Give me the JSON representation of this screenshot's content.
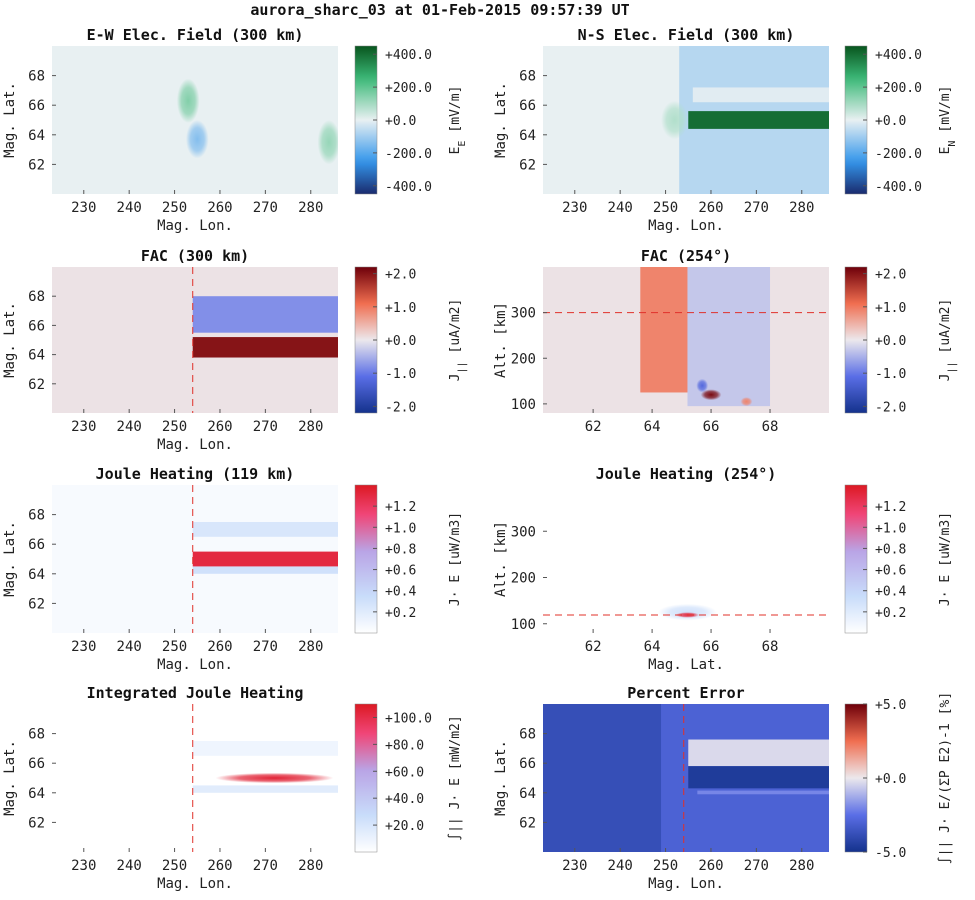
{
  "figure": {
    "title": "aurora_sharc_03 at 01-Feb-2015 09:57:39 UT"
  },
  "colors": {
    "red_dash": "#e0302a",
    "axis": "#555555"
  },
  "chart_data": [
    {
      "id": "ew",
      "type": "heatmap",
      "title": "E-W Elec. Field (300 km)",
      "xlabel": "Mag. Lon.",
      "ylabel": "Mag. Lat.",
      "xlim": [
        223,
        286
      ],
      "ylim": [
        60,
        70
      ],
      "xticks": [
        230,
        240,
        250,
        260,
        270,
        280
      ],
      "yticks": [
        62,
        64,
        66,
        68
      ],
      "colormap": "green-white-blue",
      "cbar": {
        "label": "E",
        "sub": "E",
        "unit": "[mV/m]",
        "min": -450,
        "max": 450,
        "ticks": [
          400,
          200,
          0,
          -200,
          -400
        ],
        "tick_labels": [
          "+400.0",
          "+200.0",
          "+0.0",
          "-200.0",
          "-400.0"
        ]
      },
      "background": 0,
      "features": [
        {
          "kind": "blob",
          "cx": 253,
          "cy": 66.3,
          "rx": 2.5,
          "ry": 1.5,
          "value": 150
        },
        {
          "kind": "blob",
          "cx": 255,
          "cy": 63.7,
          "rx": 2.5,
          "ry": 1.3,
          "value": -140
        },
        {
          "kind": "blob",
          "cx": 284,
          "cy": 63.5,
          "rx": 2.5,
          "ry": 1.5,
          "value": 120
        }
      ]
    },
    {
      "id": "ns",
      "type": "heatmap",
      "title": "N-S Elec. Field (300 km)",
      "xlabel": "Mag. Lon.",
      "ylabel": "Mag. Lat.",
      "xlim": [
        223,
        286
      ],
      "ylim": [
        60,
        70
      ],
      "xticks": [
        230,
        240,
        250,
        260,
        270,
        280
      ],
      "yticks": [
        62,
        64,
        66,
        68
      ],
      "colormap": "green-white-blue",
      "cbar": {
        "label": "E",
        "sub": "N",
        "unit": "[mV/m]",
        "min": -450,
        "max": 450,
        "ticks": [
          400,
          200,
          0,
          -200,
          -400
        ],
        "tick_labels": [
          "+400.0",
          "+200.0",
          "+0.0",
          "-200.0",
          "-400.0"
        ]
      },
      "background": 0,
      "features": [
        {
          "kind": "rect",
          "x0": 253,
          "x1": 286,
          "y0": 60,
          "y1": 70,
          "value": -70
        },
        {
          "kind": "rect",
          "x0": 256,
          "x1": 286,
          "y0": 66.2,
          "y1": 67.2,
          "value": -10
        },
        {
          "kind": "rect",
          "x0": 255,
          "x1": 286,
          "y0": 64.4,
          "y1": 65.6,
          "value": 400
        },
        {
          "kind": "blob",
          "cx": 252,
          "cy": 65,
          "rx": 3,
          "ry": 1.3,
          "value": 80
        }
      ]
    },
    {
      "id": "fac_lon",
      "type": "heatmap",
      "title": "FAC (300 km)",
      "xlabel": "Mag. Lon.",
      "ylabel": "Mag. Lat.",
      "xlim": [
        223,
        286
      ],
      "ylim": [
        60,
        70
      ],
      "xticks": [
        230,
        240,
        250,
        260,
        270,
        280
      ],
      "yticks": [
        62,
        64,
        66,
        68
      ],
      "colormap": "blue-white-red",
      "cbar": {
        "label": "J",
        "sub": "||",
        "unit": "[uA/m2]",
        "min": -2.2,
        "max": 2.2,
        "ticks": [
          2,
          1,
          0,
          -1,
          -2
        ],
        "tick_labels": [
          "+2.0",
          "+1.0",
          "+0.0",
          "-1.0",
          "-2.0"
        ]
      },
      "background": 0.05,
      "vline": 254,
      "features": [
        {
          "kind": "rect",
          "x0": 254,
          "x1": 286,
          "y0": 65.5,
          "y1": 68,
          "value": -0.8
        },
        {
          "kind": "rect",
          "x0": 254,
          "x1": 286,
          "y0": 63.8,
          "y1": 65.2,
          "value": 2.0
        }
      ]
    },
    {
      "id": "fac_alt",
      "type": "heatmap",
      "title": "FAC (254°)",
      "xlabel": "",
      "ylabel": "Alt. [km]",
      "xlim": [
        60.3,
        70
      ],
      "ylim": [
        80,
        400
      ],
      "xticks": [
        62,
        64,
        66,
        68
      ],
      "yticks": [
        100,
        200,
        300
      ],
      "colormap": "blue-white-red",
      "cbar": {
        "label": "J",
        "sub": "||",
        "unit": "[uA/m2]",
        "min": -2.2,
        "max": 2.2,
        "ticks": [
          2,
          1,
          0,
          -1,
          -2
        ],
        "tick_labels": [
          "+2.0",
          "+1.0",
          "+0.0",
          "-1.0",
          "-2.0"
        ]
      },
      "background": 0.05,
      "hline": 300,
      "features": [
        {
          "kind": "rect",
          "x0": 63.6,
          "x1": 65.2,
          "y0": 125,
          "y1": 400,
          "value": 0.9
        },
        {
          "kind": "rect",
          "x0": 65.2,
          "x1": 68,
          "y0": 95,
          "y1": 400,
          "value": -0.3
        },
        {
          "kind": "blob",
          "cx": 66.0,
          "cy": 120,
          "rx": 0.35,
          "ry": 12,
          "value": 2.1
        },
        {
          "kind": "blob",
          "cx": 65.7,
          "cy": 140,
          "rx": 0.2,
          "ry": 15,
          "value": -1.2
        },
        {
          "kind": "blob",
          "cx": 67.2,
          "cy": 105,
          "rx": 0.2,
          "ry": 10,
          "value": 0.9
        }
      ]
    },
    {
      "id": "jh_lon",
      "type": "heatmap",
      "title": "Joule Heating (119 km)",
      "xlabel": "Mag. Lon.",
      "ylabel": "Mag. Lat.",
      "xlim": [
        223,
        286
      ],
      "ylim": [
        60,
        70
      ],
      "xticks": [
        230,
        240,
        250,
        260,
        270,
        280
      ],
      "yticks": [
        62,
        64,
        66,
        68
      ],
      "colormap": "white-blue-red",
      "cbar": {
        "label": "J· E",
        "sub": "",
        "unit": "[uW/m3]",
        "min": 0,
        "max": 1.4,
        "ticks": [
          1.2,
          1.0,
          0.8,
          0.6,
          0.4,
          0.2
        ],
        "tick_labels": [
          "+1.2",
          "+1.0",
          "+0.8",
          "+0.6",
          "+0.4",
          "+0.2"
        ]
      },
      "background": 0.05,
      "vline": 254,
      "features": [
        {
          "kind": "rect",
          "x0": 254,
          "x1": 286,
          "y0": 66.5,
          "y1": 67.5,
          "value": 0.25
        },
        {
          "kind": "rect",
          "x0": 254,
          "x1": 286,
          "y0": 64.0,
          "y1": 64.5,
          "value": 0.3
        },
        {
          "kind": "rect",
          "x0": 254,
          "x1": 286,
          "y0": 64.5,
          "y1": 65.5,
          "value": 1.3
        }
      ]
    },
    {
      "id": "jh_alt",
      "type": "heatmap",
      "title": "Joule Heating (254°)",
      "xlabel": "Mag. Lat.",
      "ylabel": "Alt. [km]",
      "xlim": [
        60.3,
        70
      ],
      "ylim": [
        80,
        400
      ],
      "xticks": [
        62,
        64,
        66,
        68
      ],
      "yticks": [
        100,
        200,
        300
      ],
      "colormap": "white-blue-red",
      "cbar": {
        "label": "J· E",
        "sub": "",
        "unit": "[uW/m3]",
        "min": 0,
        "max": 1.4,
        "ticks": [
          1.2,
          1.0,
          0.8,
          0.6,
          0.4,
          0.2
        ],
        "tick_labels": [
          "+1.2",
          "+1.0",
          "+0.8",
          "+0.6",
          "+0.4",
          "+0.2"
        ]
      },
      "background": 0,
      "hline": 119,
      "features": [
        {
          "kind": "blob",
          "cx": 65.2,
          "cy": 125,
          "rx": 1.0,
          "ry": 18,
          "value": 0.3
        },
        {
          "kind": "blob",
          "cx": 65.2,
          "cy": 119,
          "rx": 0.4,
          "ry": 6,
          "value": 1.3
        }
      ]
    },
    {
      "id": "ijh",
      "type": "heatmap",
      "title": "Integrated Joule Heating",
      "xlabel": "Mag. Lon.",
      "ylabel": "Mag. Lat.",
      "xlim": [
        223,
        286
      ],
      "ylim": [
        60,
        70
      ],
      "xticks": [
        230,
        240,
        250,
        260,
        270,
        280
      ],
      "yticks": [
        62,
        64,
        66,
        68
      ],
      "colormap": "white-blue-red",
      "cbar": {
        "label": "∫|| J· E",
        "sub": "",
        "unit": "[mW/m2]",
        "min": 0,
        "max": 110,
        "ticks": [
          100,
          80,
          60,
          40,
          20
        ],
        "tick_labels": [
          "+100.0",
          "+80.0",
          "+60.0",
          "+40.0",
          "+20.0"
        ]
      },
      "background": 0,
      "vline": 254,
      "features": [
        {
          "kind": "rect",
          "x0": 254,
          "x1": 286,
          "y0": 66.5,
          "y1": 67.5,
          "value": 8
        },
        {
          "kind": "rect",
          "x0": 254,
          "x1": 286,
          "y0": 64.0,
          "y1": 64.5,
          "value": 15
        },
        {
          "kind": "blob",
          "cx": 272,
          "cy": 65.0,
          "rx": 13,
          "ry": 0.35,
          "value": 105
        }
      ]
    },
    {
      "id": "perr",
      "type": "heatmap",
      "title": "Percent Error",
      "xlabel": "Mag. Lon.",
      "ylabel": "Mag. Lat.",
      "xlim": [
        223,
        286
      ],
      "ylim": [
        60,
        70
      ],
      "xticks": [
        230,
        240,
        250,
        260,
        270,
        280
      ],
      "yticks": [
        62,
        64,
        66,
        68
      ],
      "colormap": "blue-white-red",
      "cbar": {
        "label": "∫|| J· E/(ΣP E2)-1",
        "sub": "",
        "unit": "[%]",
        "min": -5,
        "max": 5,
        "ticks": [
          5,
          0,
          -5
        ],
        "tick_labels": [
          "+5.0",
          "+0.0",
          "-5.0"
        ]
      },
      "background": -3.8,
      "vline": 254,
      "features": [
        {
          "kind": "rect",
          "x0": 249,
          "x1": 286,
          "y0": 60,
          "y1": 70,
          "value": -3
        },
        {
          "kind": "rect",
          "x0": 255,
          "x1": 286,
          "y0": 65.8,
          "y1": 67.6,
          "value": -0.3
        },
        {
          "kind": "rect",
          "x0": 255,
          "x1": 286,
          "y0": 64.3,
          "y1": 65.8,
          "value": -4.6
        },
        {
          "kind": "rect",
          "x0": 257,
          "x1": 286,
          "y0": 63.9,
          "y1": 64.15,
          "value": -2
        }
      ]
    }
  ]
}
